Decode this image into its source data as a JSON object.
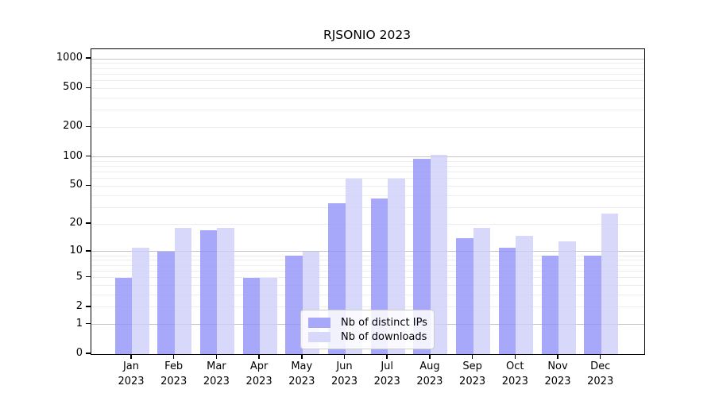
{
  "title": "RJSONIO 2023",
  "chart_data": {
    "type": "bar",
    "title": "RJSONIO 2023",
    "xlabel": "",
    "ylabel": "",
    "yscale": "log1p",
    "ylim": [
      0,
      1250
    ],
    "yticks": [
      0,
      1,
      2,
      5,
      10,
      20,
      50,
      100,
      200,
      500,
      1000
    ],
    "grid": "on",
    "legend_position": "lower center",
    "year": "2023",
    "months": [
      "Jan",
      "Feb",
      "Mar",
      "Apr",
      "May",
      "Jun",
      "Jul",
      "Aug",
      "Sep",
      "Oct",
      "Nov",
      "Dec"
    ],
    "categories": [
      "Jan 2023",
      "Feb 2023",
      "Mar 2023",
      "Apr 2023",
      "May 2023",
      "Jun 2023",
      "Jul 2023",
      "Aug 2023",
      "Sep 2023",
      "Oct 2023",
      "Nov 2023",
      "Dec 2023"
    ],
    "series": [
      {
        "name": "Nb of distinct IPs",
        "fill": "rgba(146,146,250,0.8)",
        "legend_color": "#a8a8fa",
        "values": [
          5,
          10,
          17,
          5,
          9,
          33,
          37,
          95,
          14,
          11,
          9,
          9
        ]
      },
      {
        "name": "Nb of downloads",
        "fill": "rgba(206,206,250,0.8)",
        "legend_color": "#d8d8fa",
        "values": [
          11,
          18,
          18,
          5,
          10,
          60,
          60,
          105,
          18,
          15,
          13,
          26
        ]
      }
    ],
    "colors": {
      "grid_major": "#c4c4c4",
      "grid_minor": "#ededed",
      "axis": "#000000"
    }
  }
}
